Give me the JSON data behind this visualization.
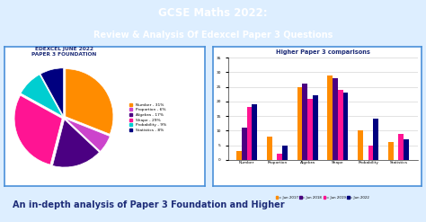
{
  "title_line1": "GCSE Maths 2022:",
  "title_line2": "Review & Analysis Of Edexcel Paper 3 Questions",
  "title_bg": "#1e2d78",
  "title_text_color": "#ffffff",
  "footer_text": "An in-depth analysis of Paper 3 Foundation and Higher",
  "footer_bg": "#c8f0ee",
  "footer_text_color": "#1e2d78",
  "pie_title": "EDEXCEL JUNE 2022\nPAPER 3 FOUNDATION",
  "pie_labels": [
    "Number - 31%",
    "Proportion - 6%",
    "Algebra - 17%",
    "Shape - 29%",
    "Probability - 9%",
    "Statistics - 8%"
  ],
  "pie_sizes": [
    31,
    6,
    17,
    29,
    9,
    8
  ],
  "pie_colors": [
    "#FF8C00",
    "#CC44CC",
    "#4B0082",
    "#FF1493",
    "#00CED1",
    "#000080"
  ],
  "pie_explode": [
    0.04,
    0.04,
    0.04,
    0.04,
    0.04,
    0.04
  ],
  "bar_title": "Higher Paper 3 comparisons",
  "bar_categories": [
    "Number",
    "Proportion",
    "Algebra",
    "Shape",
    "Probability",
    "Statistics"
  ],
  "bar_series": {
    "Jun 2017": [
      3,
      8,
      25,
      29,
      10,
      6
    ],
    "Jun 2018": [
      11,
      0,
      26,
      28,
      0,
      0
    ],
    "Jun 2019": [
      18,
      2,
      21,
      24,
      5,
      9
    ],
    "Jun 2022": [
      19,
      5,
      22,
      23,
      14,
      7
    ]
  },
  "bar_colors": [
    "#FF8C00",
    "#4B0082",
    "#FF1493",
    "#000080"
  ],
  "bar_legend": [
    "Jun 2017",
    "Jun 2018",
    "Jun 2019",
    "Jun 2022"
  ],
  "bar_ylim": [
    0,
    35
  ],
  "bar_yticks": [
    0,
    5,
    10,
    15,
    20,
    25,
    30,
    35
  ],
  "panel_bg": "#ffffff",
  "panel_border": "#4a90d9",
  "main_bg": "#ddeeff"
}
